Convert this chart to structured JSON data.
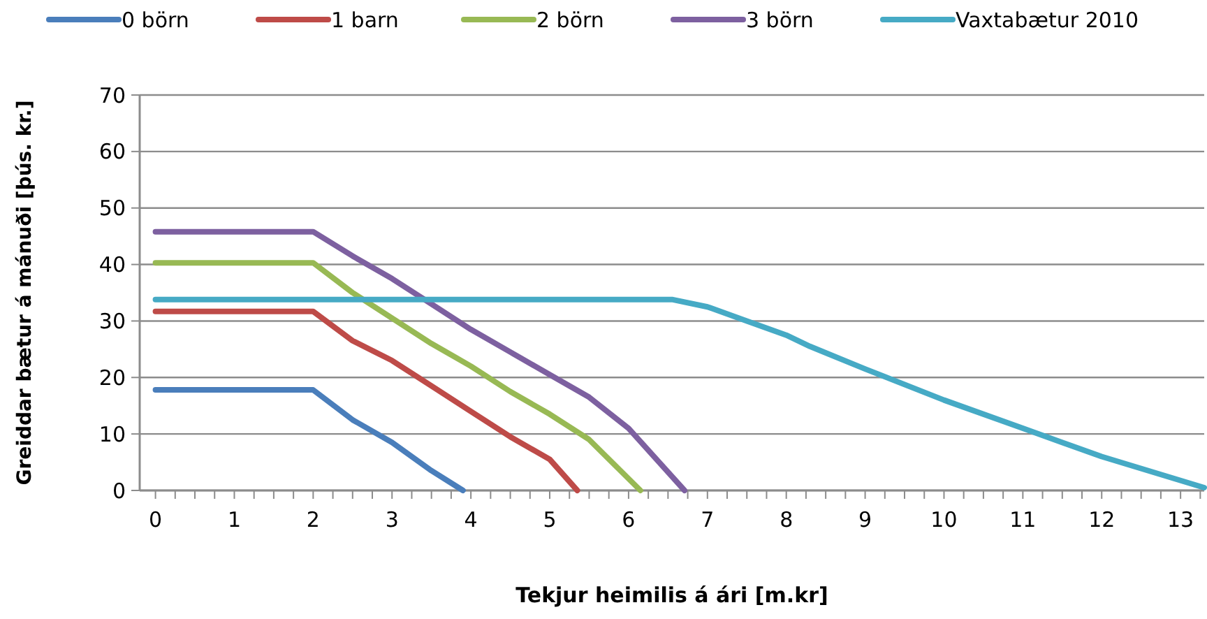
{
  "chart_data": {
    "type": "line",
    "xlabel": "Tekjur heimilis á ári [m.kr]",
    "ylabel": "Greiddar bætur á mánuði [þús. kr.]",
    "xlim": [
      -0.2,
      13.3
    ],
    "ylim": [
      0,
      70
    ],
    "yticks": [
      0,
      10,
      20,
      30,
      40,
      50,
      60,
      70
    ],
    "xticks": [
      0,
      {
        "value": 0.25,
        "label": null
      },
      {
        "value": 0.5,
        "label": null
      },
      {
        "value": 0.75,
        "label": null
      },
      1,
      {
        "value": 1.25,
        "label": null
      },
      {
        "value": 1.5,
        "label": null
      },
      {
        "value": 1.75,
        "label": null
      },
      2,
      {
        "value": 2.25,
        "label": null
      },
      {
        "value": 2.5,
        "label": null
      },
      {
        "value": 2.75,
        "label": null
      },
      3,
      {
        "value": 3.25,
        "label": null
      },
      {
        "value": 3.5,
        "label": null
      },
      {
        "value": 3.75,
        "label": null
      },
      4,
      {
        "value": 4.25,
        "label": null
      },
      {
        "value": 4.5,
        "label": null
      },
      {
        "value": 4.75,
        "label": null
      },
      5,
      {
        "value": 5.25,
        "label": null
      },
      {
        "value": 5.5,
        "label": null
      },
      {
        "value": 5.75,
        "label": null
      },
      6,
      {
        "value": 6.25,
        "label": null
      },
      {
        "value": 6.5,
        "label": null
      },
      {
        "value": 6.75,
        "label": null
      },
      7,
      {
        "value": 7.25,
        "label": null
      },
      {
        "value": 7.5,
        "label": null
      },
      {
        "value": 7.75,
        "label": null
      },
      8,
      {
        "value": 8.25,
        "label": null
      },
      {
        "value": 8.5,
        "label": null
      },
      {
        "value": 8.75,
        "label": null
      },
      9,
      {
        "value": 9.25,
        "label": null
      },
      {
        "value": 9.5,
        "label": null
      },
      {
        "value": 9.75,
        "label": null
      },
      10,
      {
        "value": 10.25,
        "label": null
      },
      {
        "value": 10.5,
        "label": null
      },
      {
        "value": 10.75,
        "label": null
      },
      11,
      {
        "value": 11.25,
        "label": null
      },
      {
        "value": 11.5,
        "label": null
      },
      {
        "value": 11.75,
        "label": null
      },
      12,
      {
        "value": 12.25,
        "label": null
      },
      {
        "value": 12.5,
        "label": null
      },
      {
        "value": 12.75,
        "label": null
      },
      13,
      {
        "value": 13.25,
        "label": null
      }
    ],
    "grid": "y",
    "legend": "top",
    "marker": "none",
    "line_style": "solid",
    "series": [
      {
        "name": "0 börn",
        "color": "#4a7ebb",
        "x": [
          0,
          2,
          2.5,
          3,
          3.5,
          3.9
        ],
        "values": [
          17.8,
          17.8,
          12.5,
          8.5,
          3.5,
          0
        ]
      },
      {
        "name": "1 barn",
        "color": "#be4b48",
        "x": [
          0,
          2,
          2.5,
          3,
          3.5,
          4,
          4.5,
          5,
          5.35
        ],
        "values": [
          31.7,
          31.7,
          26.5,
          23,
          18.5,
          14,
          9.5,
          5.5,
          0
        ]
      },
      {
        "name": "2 börn",
        "color": "#98b954",
        "x": [
          0,
          2,
          2.5,
          3,
          3.5,
          4,
          4.5,
          5,
          5.5,
          6.15
        ],
        "values": [
          40.3,
          40.3,
          35,
          30.5,
          26,
          22,
          17.5,
          13.5,
          9,
          0
        ]
      },
      {
        "name": "3 börn",
        "color": "#7d60a0",
        "x": [
          0,
          2,
          2.5,
          3,
          3.5,
          4,
          4.5,
          5,
          5.5,
          6,
          6.71
        ],
        "values": [
          45.8,
          45.8,
          41.5,
          37.5,
          33,
          28.5,
          24.5,
          20.5,
          16.5,
          11,
          0
        ]
      },
      {
        "name": "Vaxtabætur 2010",
        "color": "#46aac5",
        "x": [
          0,
          6.55,
          7,
          7.5,
          8,
          8.3,
          9,
          10,
          11,
          12,
          13.3
        ],
        "values": [
          33.8,
          33.8,
          32.5,
          30,
          27.5,
          25.5,
          21.5,
          16,
          11,
          6,
          0.5
        ]
      }
    ]
  }
}
